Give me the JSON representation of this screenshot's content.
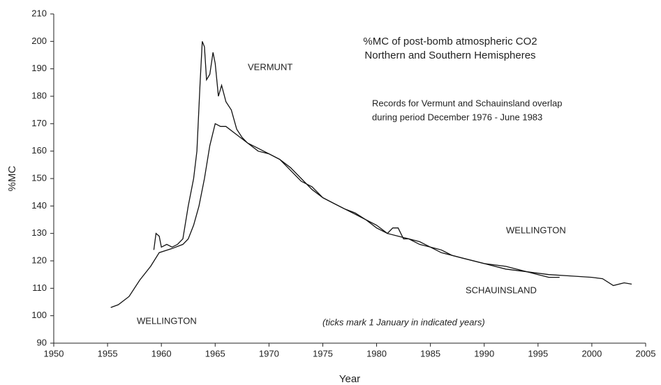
{
  "chart_data": {
    "type": "line",
    "title_lines": [
      "%MC of post-bomb atmospheric CO2",
      "Northern and Southern Hemispheres"
    ],
    "x_label": "Year",
    "y_label": "%MC",
    "annotations": [
      "VERMUNT",
      "Records for Vermunt and Schauinsland overlap",
      "during period December 1976 - June 1983",
      "WELLINGTON",
      "SCHAUINSLAND",
      "WELLINGTON",
      "(ticks mark 1 January in indicated years)"
    ],
    "xlim": [
      1950,
      2005
    ],
    "xticks": [
      1950,
      1955,
      1960,
      1965,
      1970,
      1975,
      1980,
      1985,
      1990,
      1995,
      2000,
      2005
    ],
    "ylim": [
      90,
      210
    ],
    "yticks": [
      90,
      100,
      110,
      120,
      130,
      140,
      150,
      160,
      170,
      180,
      190,
      200,
      210
    ],
    "series": [
      {
        "color": "#111111",
        "x": [
          1959.3,
          1959.5,
          1959.8,
          1960.0,
          1960.5,
          1961,
          1961.5,
          1962,
          1962.5,
          1963,
          1963.3,
          1963.6,
          1963.8,
          1964.0,
          1964.2,
          1964.5,
          1964.8,
          1965.0,
          1965.3,
          1965.6,
          1966,
          1966.5,
          1967,
          1967.5,
          1968,
          1969,
          1970,
          1971,
          1972,
          1973,
          1974,
          1975,
          1976,
          1977,
          1978,
          1979,
          1980,
          1981,
          1981.5,
          1982,
          1982.5,
          1983,
          1984,
          1985,
          1986,
          1987,
          1988,
          1990,
          1992,
          1994,
          1995,
          1996,
          1997
        ],
        "values": [
          124,
          130,
          129,
          125,
          126,
          125,
          126,
          128,
          140,
          150,
          160,
          185,
          200,
          198,
          186,
          188,
          196,
          192,
          180,
          184,
          178,
          175,
          168,
          165,
          163,
          161,
          159,
          157,
          154,
          150,
          146,
          143,
          141,
          139,
          137,
          135,
          133,
          130,
          132,
          132,
          128,
          128,
          127,
          125,
          124,
          122,
          121,
          119,
          118,
          116,
          115,
          114,
          114
        ]
      },
      {
        "color": "#111111",
        "x": [
          1955.3,
          1956,
          1957,
          1958,
          1959,
          1959.8,
          1961,
          1962,
          1962.5,
          1963,
          1963.5,
          1964,
          1964.5,
          1965,
          1965.5,
          1966,
          1967,
          1968,
          1969,
          1970,
          1971,
          1972,
          1973,
          1974,
          1975,
          1976,
          1977,
          1978,
          1979,
          1980,
          1981,
          1982,
          1983,
          1984,
          1985,
          1986,
          1987,
          1988,
          1989,
          1990,
          1992,
          1994,
          1996,
          1998,
          2000,
          2001,
          2002,
          2003,
          2003.7
        ],
        "values": [
          103,
          104,
          107,
          113,
          118,
          123,
          124.5,
          126,
          128,
          133,
          140,
          150,
          162,
          170,
          169,
          169,
          166,
          163,
          160,
          159,
          157,
          153,
          149,
          147,
          143,
          141,
          139,
          137.5,
          135,
          132,
          130,
          129,
          128,
          126,
          125,
          123,
          122,
          121,
          120,
          119,
          117,
          116,
          115,
          114.5,
          114,
          113.5,
          111,
          112,
          111.5
        ]
      }
    ]
  }
}
